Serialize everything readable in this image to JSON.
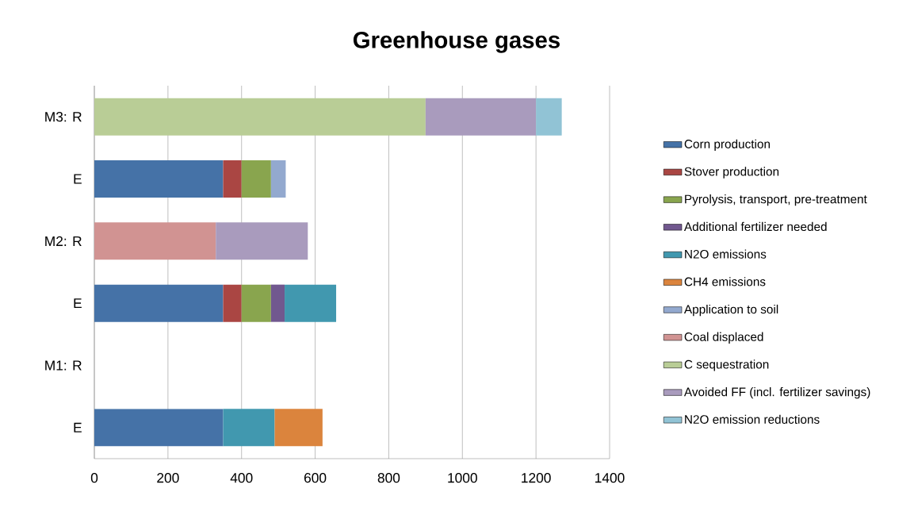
{
  "chart_data": {
    "type": "bar",
    "orientation": "horizontal",
    "stacked": true,
    "title": "Greenhouse gases",
    "categories": [
      "M3: R",
      "E",
      "M2: R",
      "E",
      "M1: R",
      "E"
    ],
    "series": [
      {
        "name": "Corn production",
        "color": "#4572a7",
        "values": [
          null,
          350,
          null,
          350,
          null,
          350
        ]
      },
      {
        "name": "Stover production",
        "color": "#aa4643",
        "values": [
          null,
          50,
          null,
          50,
          null,
          null
        ]
      },
      {
        "name": "Pyrolysis, transport, pre-treatment",
        "color": "#89a54e",
        "values": [
          null,
          80,
          null,
          80,
          null,
          null
        ]
      },
      {
        "name": "Additional fertilizer needed",
        "color": "#71588f",
        "values": [
          null,
          null,
          null,
          37,
          null,
          null
        ]
      },
      {
        "name": "N2O emissions",
        "color": "#4198af",
        "values": [
          null,
          null,
          null,
          140,
          null,
          140
        ]
      },
      {
        "name": "CH4 emissions",
        "color": "#db843d",
        "values": [
          null,
          null,
          null,
          null,
          null,
          130
        ]
      },
      {
        "name": "Application to soil",
        "color": "#93a9cf",
        "values": [
          null,
          40,
          null,
          null,
          null,
          null
        ]
      },
      {
        "name": "Coal displaced",
        "color": "#d19392",
        "values": [
          null,
          null,
          330,
          null,
          null,
          null
        ]
      },
      {
        "name": "C sequestration",
        "color": "#b9cd96",
        "values": [
          900,
          null,
          null,
          null,
          null,
          null
        ]
      },
      {
        "name": "Avoided FF (incl. fertilizer savings)",
        "color": "#a99bbd",
        "values": [
          300,
          null,
          250,
          null,
          null,
          null
        ]
      },
      {
        "name": "N2O emission reductions",
        "color": "#91c3d5",
        "values": [
          70,
          null,
          null,
          null,
          null,
          null
        ]
      }
    ],
    "xlim": [
      0,
      1400
    ],
    "xticks": [
      0,
      200,
      400,
      600,
      800,
      1000,
      1200,
      1400
    ],
    "grid": "x",
    "legend": "right"
  }
}
